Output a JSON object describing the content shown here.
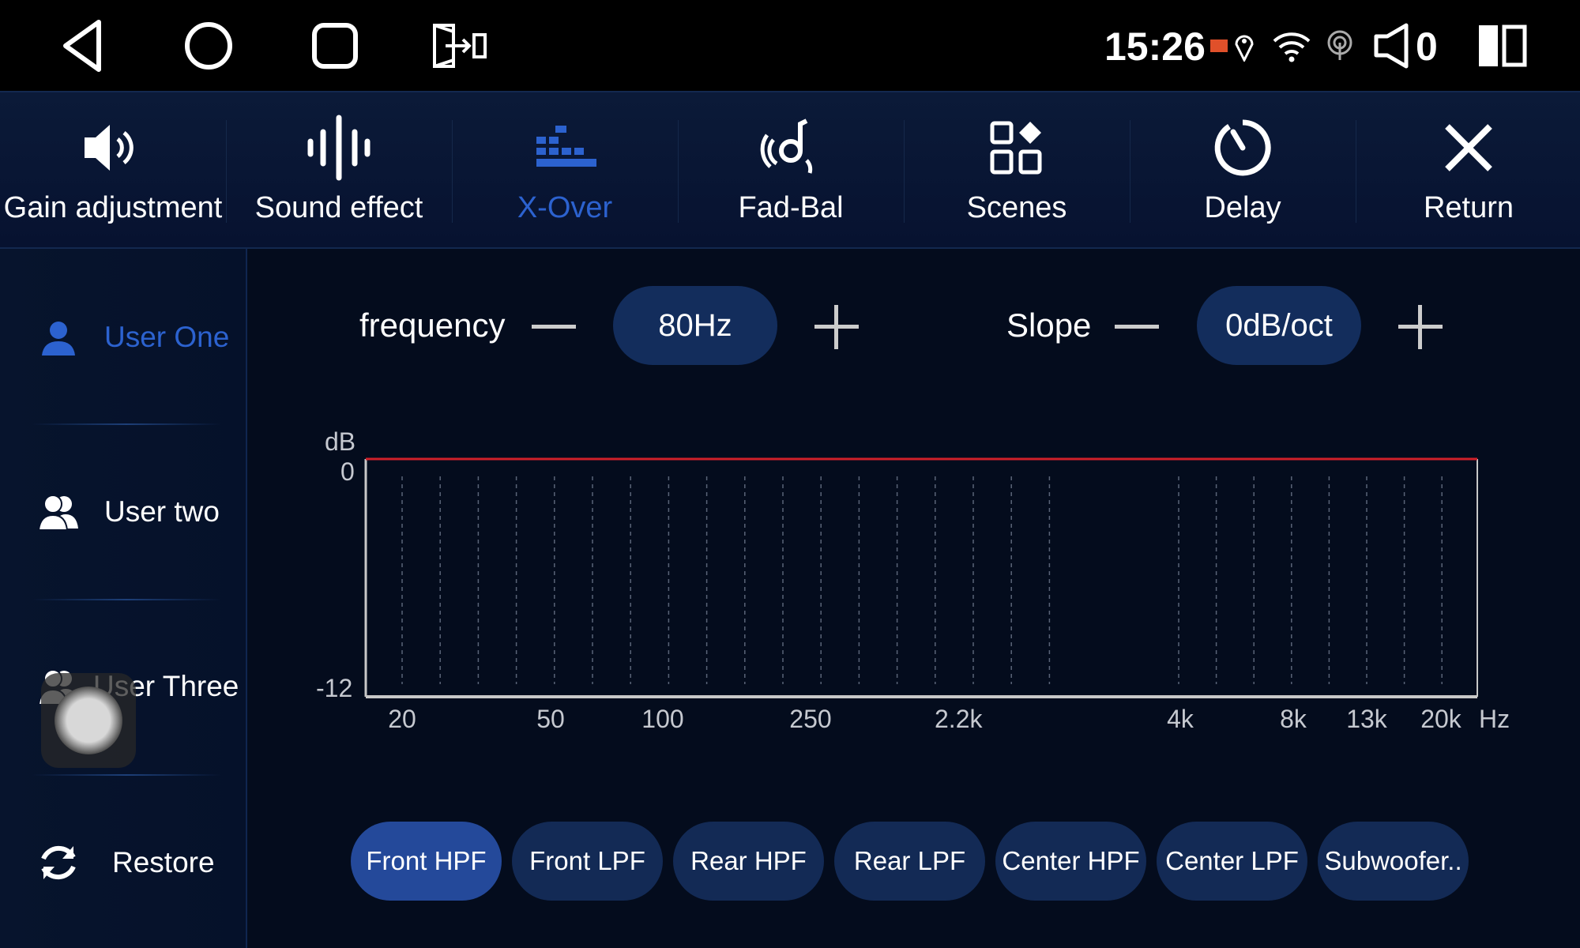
{
  "status_bar": {
    "time": "15:26",
    "volume_level": "0",
    "icons": [
      "back-icon",
      "home-icon",
      "recents-icon",
      "split-screen-icon",
      "cast-icon",
      "location-icon",
      "wifi-icon",
      "hotspot-icon",
      "speaker-icon",
      "dual-pane-icon"
    ]
  },
  "tabs": [
    {
      "label": "Gain adjustment",
      "icon": "speaker-icon"
    },
    {
      "label": "Sound effect",
      "icon": "waveform-icon"
    },
    {
      "label": "X-Over",
      "icon": "bars-icon",
      "active": true
    },
    {
      "label": "Fad-Bal",
      "icon": "surround-icon"
    },
    {
      "label": "Scenes",
      "icon": "grid-icon"
    },
    {
      "label": "Delay",
      "icon": "timer-icon"
    },
    {
      "label": "Return",
      "icon": "close-icon"
    }
  ],
  "sidebar": {
    "items": [
      {
        "label": "User One",
        "icon": "user-icon",
        "active": true
      },
      {
        "label": "User two",
        "icon": "users-icon"
      },
      {
        "label": "User Three",
        "icon": "users-icon"
      },
      {
        "label": "Restore",
        "icon": "refresh-icon"
      }
    ]
  },
  "controls": {
    "frequency_label": "frequency",
    "frequency_value": "80Hz",
    "slope_label": "Slope",
    "slope_value": "0dB/oct"
  },
  "chart": {
    "y_unit": "dB",
    "y_ticks": [
      "0",
      "-12"
    ],
    "ylim": [
      -12,
      0
    ],
    "x_ticks": [
      "20",
      "50",
      "100",
      "250",
      "2.2k",
      "4k",
      "8k",
      "13k",
      "20k"
    ],
    "x_unit": "Hz",
    "curve_db": 0,
    "grid": true,
    "colors": {
      "curve": "#d0202a",
      "axis": "#c8c8c8",
      "grid": "#5a6478"
    }
  },
  "channels": [
    {
      "label": "Front HPF",
      "active": true
    },
    {
      "label": "Front LPF"
    },
    {
      "label": "Rear HPF"
    },
    {
      "label": "Rear LPF"
    },
    {
      "label": "Center HPF"
    },
    {
      "label": "Center LPF"
    },
    {
      "label": "Subwoofer.."
    }
  ],
  "colors": {
    "accent": "#2c62cf",
    "background": "#040c1d",
    "pill": "#132d5c"
  }
}
